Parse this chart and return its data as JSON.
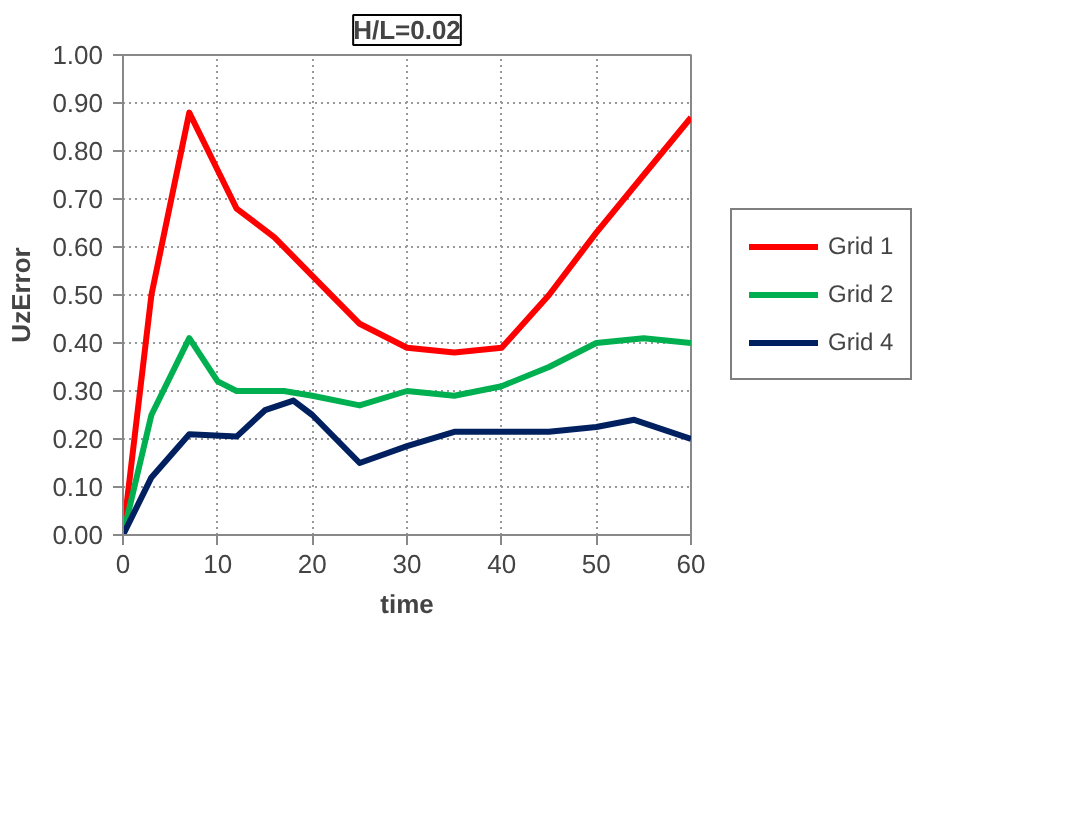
{
  "chart_data": {
    "type": "line",
    "title": "H/L=0.02",
    "xlabel": "time",
    "ylabel": "UzError",
    "xlim": [
      0,
      60
    ],
    "xticks": [
      0,
      10,
      20,
      30,
      40,
      50,
      60
    ],
    "ylim": [
      0,
      1
    ],
    "yticks": [
      {
        "value": 0,
        "label": "0.00"
      },
      {
        "value": 0.1,
        "label": "0.10"
      },
      {
        "value": 0.2,
        "label": "0.20"
      },
      {
        "value": 0.3,
        "label": "0.30"
      },
      {
        "value": 0.4,
        "label": "0.40"
      },
      {
        "value": 0.5,
        "label": "0.50"
      },
      {
        "value": 0.6,
        "label": "0.60"
      },
      {
        "value": 0.7,
        "label": "0.70"
      },
      {
        "value": 0.8,
        "label": "0.80"
      },
      {
        "value": 0.9,
        "label": "0.90"
      },
      {
        "value": 1,
        "label": "1.00"
      }
    ],
    "grid": true,
    "legend": "right",
    "marker": "none",
    "line_style": "solid",
    "series": [
      {
        "name": "Grid 1",
        "color": "#ff0000",
        "x": [
          0,
          3,
          7,
          9,
          12,
          16,
          20,
          25,
          30,
          35,
          40,
          45,
          50,
          55,
          60
        ],
        "values": [
          0,
          0.5,
          0.88,
          0.8,
          0.68,
          0.62,
          0.54,
          0.44,
          0.39,
          0.38,
          0.39,
          0.5,
          0.63,
          0.75,
          0.87
        ]
      },
      {
        "name": "Grid 2",
        "color": "#00b050",
        "x": [
          0,
          3,
          7,
          10,
          12,
          17,
          20,
          25,
          30,
          35,
          40,
          45,
          50,
          55,
          60
        ],
        "values": [
          0,
          0.25,
          0.41,
          0.32,
          0.3,
          0.3,
          0.29,
          0.27,
          0.3,
          0.29,
          0.31,
          0.35,
          0.4,
          0.41,
          0.4
        ]
      },
      {
        "name": "Grid 4",
        "color": "#002060",
        "x": [
          0,
          3,
          7,
          12,
          15,
          18,
          20,
          25,
          30,
          35,
          40,
          45,
          50,
          54,
          60
        ],
        "values": [
          0,
          0.12,
          0.21,
          0.205,
          0.26,
          0.28,
          0.25,
          0.15,
          0.185,
          0.215,
          0.215,
          0.215,
          0.225,
          0.24,
          0.2
        ]
      }
    ]
  }
}
